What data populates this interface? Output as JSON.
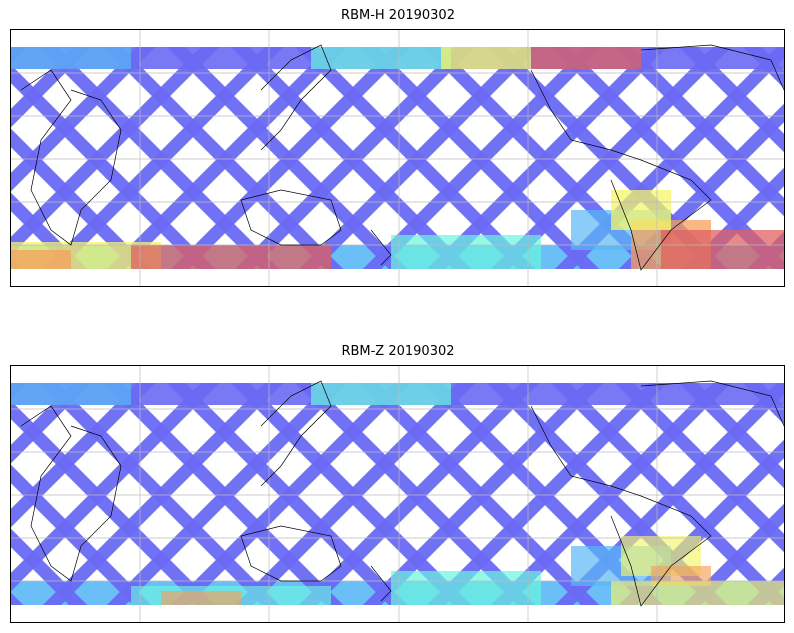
{
  "chart_data": [
    {
      "type": "heatmap",
      "title": "RBM-H 20190302",
      "projection": "plate-carree global map",
      "grid": true,
      "colormap": [
        "#6a6af5",
        "#5ab8f5",
        "#6af5e0",
        "#f5f56a",
        "#f5a05a",
        "#e06060"
      ]
    },
    {
      "type": "heatmap",
      "title": "RBM-Z 20190302",
      "projection": "plate-carree global map",
      "grid": true,
      "colormap": [
        "#6a6af5",
        "#5ab8f5",
        "#6af5e0",
        "#f5f56a",
        "#f5a05a",
        "#e06060"
      ]
    }
  ]
}
